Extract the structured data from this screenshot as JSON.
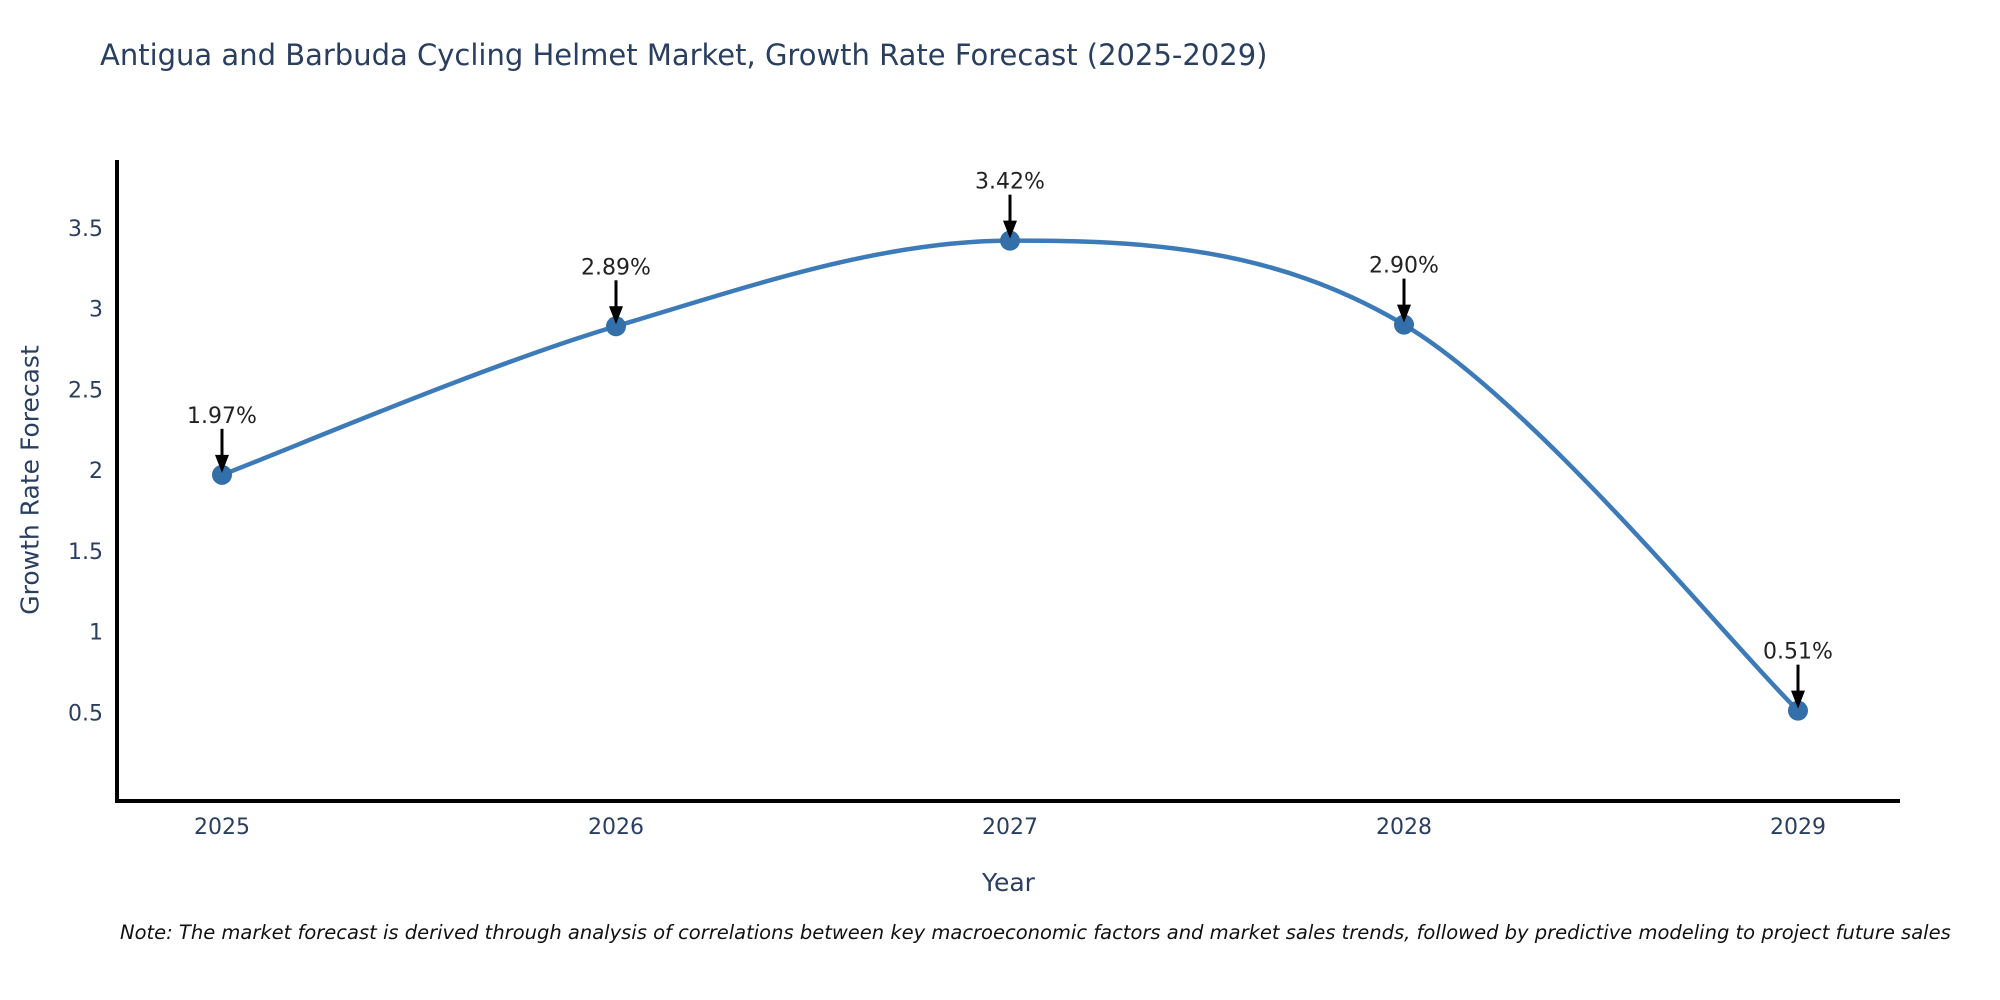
{
  "title": "Antigua and Barbuda Cycling Helmet Market, Growth Rate Forecast (2025-2029)",
  "note": "Note: The market forecast is derived through analysis of correlations between key macroeconomic factors and market sales trends, followed by predictive modeling to project future sales",
  "chart_data": {
    "type": "line",
    "title": "Antigua and Barbuda Cycling Helmet Market, Growth Rate Forecast (2025-2029)",
    "xlabel": "Year",
    "ylabel": "Growth Rate Forecast",
    "categories": [
      "2025",
      "2026",
      "2027",
      "2028",
      "2029"
    ],
    "x": [
      2025,
      2026,
      2027,
      2028,
      2029
    ],
    "values": [
      1.97,
      2.89,
      3.42,
      2.9,
      0.51
    ],
    "point_labels": [
      "1.97%",
      "2.89%",
      "3.42%",
      "2.90%",
      "0.51%"
    ],
    "y_ticks": [
      0.5,
      1,
      1.5,
      2,
      2.5,
      3,
      3.5
    ],
    "ylim": [
      -0.08,
      3.95
    ],
    "line_shape": "spline",
    "grid": false,
    "legend": "none",
    "line_color": "#3d7bb8",
    "marker_color": "#336fa9",
    "annotation_arrow_color": "#000000",
    "axis_color": "#000000",
    "tick_color": "#2a3f5f",
    "title_color": "#2a3f5f"
  }
}
